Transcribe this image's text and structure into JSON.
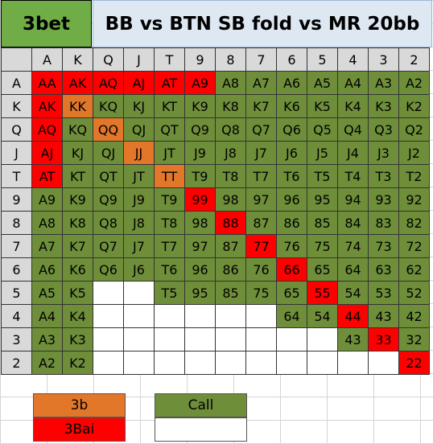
{
  "title": {
    "left": "3bet",
    "right": "BB vs BTN SB fold vs MR 20bb"
  },
  "ranks": [
    "A",
    "K",
    "Q",
    "J",
    "T",
    "9",
    "8",
    "7",
    "6",
    "5",
    "4",
    "3",
    "2"
  ],
  "colors": {
    "call": "#6f8e3a",
    "threebet": "#e2772a",
    "threebet_allin": "#ff0000",
    "header": "#d9d9d9"
  },
  "matrix": [
    [
      "3bai",
      "3bai",
      "3bai",
      "3bai",
      "3bai",
      "3bai",
      "call",
      "call",
      "call",
      "call",
      "call",
      "call",
      "call"
    ],
    [
      "3bai",
      "3b",
      "call",
      "call",
      "call",
      "call",
      "call",
      "call",
      "call",
      "call",
      "call",
      "call",
      "call"
    ],
    [
      "3bai",
      "call",
      "3b",
      "call",
      "call",
      "call",
      "call",
      "call",
      "call",
      "call",
      "call",
      "call",
      "call"
    ],
    [
      "3bai",
      "call",
      "call",
      "3b",
      "call",
      "call",
      "call",
      "call",
      "call",
      "call",
      "call",
      "call",
      "call"
    ],
    [
      "3bai",
      "call",
      "call",
      "call",
      "3b",
      "call",
      "call",
      "call",
      "call",
      "call",
      "call",
      "call",
      "call"
    ],
    [
      "call",
      "call",
      "call",
      "call",
      "call",
      "3bai",
      "call",
      "call",
      "call",
      "call",
      "call",
      "call",
      "call"
    ],
    [
      "call",
      "call",
      "call",
      "call",
      "call",
      "call",
      "3bai",
      "call",
      "call",
      "call",
      "call",
      "call",
      "call"
    ],
    [
      "call",
      "call",
      "call",
      "call",
      "call",
      "call",
      "call",
      "3bai",
      "call",
      "call",
      "call",
      "call",
      "call"
    ],
    [
      "call",
      "call",
      "call",
      "call",
      "call",
      "call",
      "call",
      "call",
      "3bai",
      "call",
      "call",
      "call",
      "call"
    ],
    [
      "call",
      "call",
      "empty",
      "empty",
      "call",
      "call",
      "call",
      "call",
      "call",
      "3bai",
      "call",
      "call",
      "call"
    ],
    [
      "call",
      "call",
      "empty",
      "empty",
      "empty",
      "empty",
      "empty",
      "empty",
      "call",
      "call",
      "3bai",
      "call",
      "call"
    ],
    [
      "call",
      "call",
      "empty",
      "empty",
      "empty",
      "empty",
      "empty",
      "empty",
      "empty",
      "empty",
      "call",
      "3bai",
      "call"
    ],
    [
      "call",
      "call",
      "empty",
      "empty",
      "empty",
      "empty",
      "empty",
      "empty",
      "empty",
      "empty",
      "empty",
      "empty",
      "3bai"
    ]
  ],
  "legend": {
    "threebet": "3b",
    "threebet_allin": "3Bai",
    "call": "Call"
  }
}
